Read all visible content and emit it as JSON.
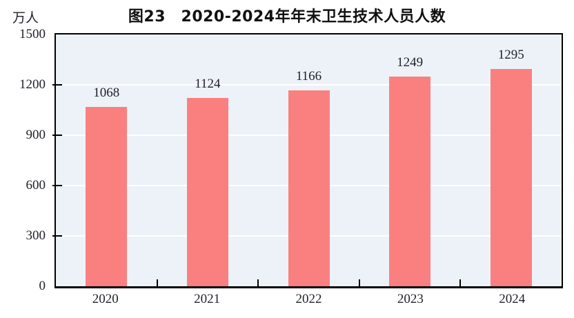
{
  "page": {
    "background": "#FFFFFF"
  },
  "chart_data": {
    "type": "bar",
    "title": "图23　2020-2024年年末卫生技术人员人数",
    "unit_label": "万人",
    "categories": [
      "2020",
      "2021",
      "2022",
      "2023",
      "2024"
    ],
    "values": [
      1068,
      1124,
      1166,
      1249,
      1295
    ],
    "ylim": [
      0,
      1500
    ],
    "yticks": [
      0,
      300,
      600,
      900,
      1200,
      1500
    ],
    "grid": true,
    "legend_position": "none",
    "colors": {
      "bar": "#FA8080",
      "plot_background": "#EDF2F8",
      "gridline": "#FFFFFF",
      "axis": "#000000",
      "text": "#1F1F28"
    }
  }
}
